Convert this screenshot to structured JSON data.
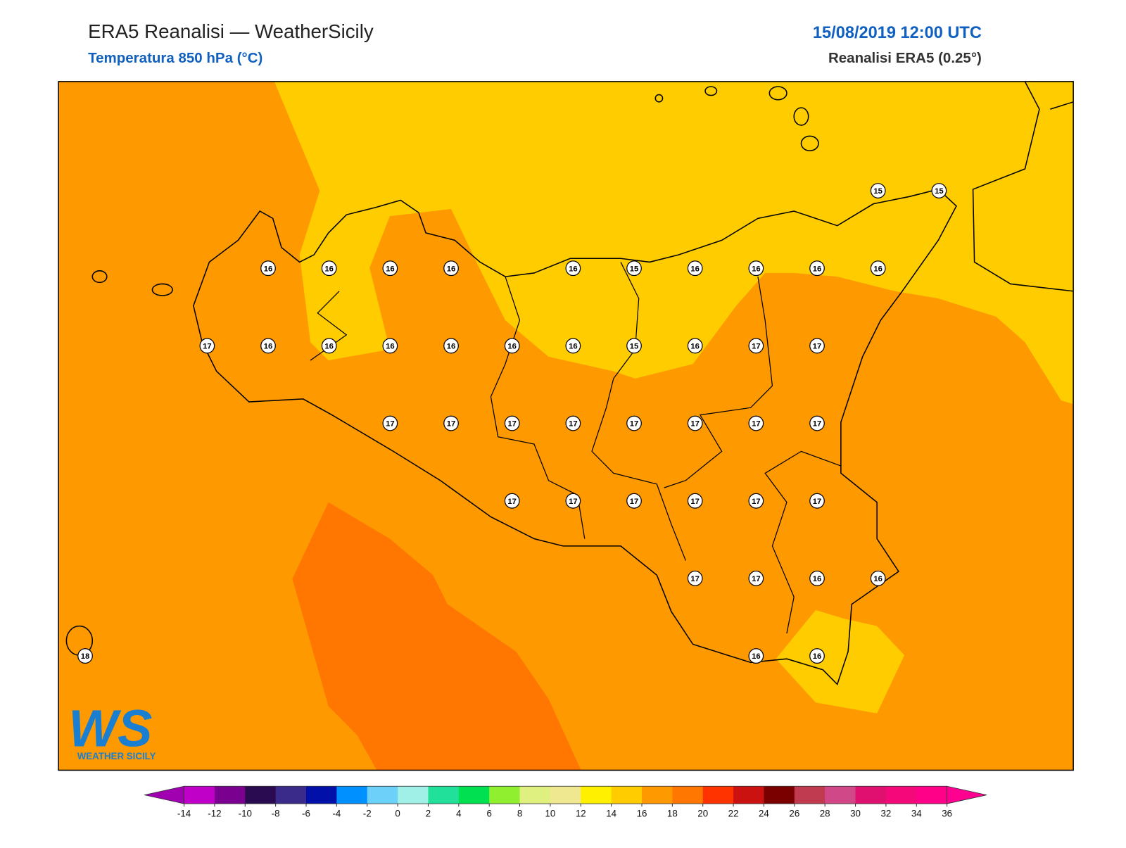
{
  "header": {
    "title": "ERA5 Reanalisi — WeatherSicily",
    "subtitle": "Temperatura 850 hPa (°C)",
    "datetime": "15/08/2019 12:00 UTC",
    "source": "Reanalisi ERA5 (0.25°)"
  },
  "logo": {
    "mark": "WS",
    "text": "WEATHER SICILY"
  },
  "map": {
    "station_values": [
      [
        null,
        null,
        null,
        null,
        null,
        null,
        null,
        null,
        null,
        null,
        null,
        null,
        null,
        15,
        15
      ],
      [
        null,
        null,
        null,
        16,
        16,
        16,
        16,
        null,
        16,
        15,
        16,
        16,
        16,
        16,
        null
      ],
      [
        null,
        null,
        17,
        16,
        16,
        16,
        16,
        16,
        16,
        15,
        16,
        17,
        17,
        null,
        null
      ],
      [
        null,
        null,
        null,
        null,
        null,
        17,
        17,
        17,
        17,
        17,
        17,
        17,
        17,
        null,
        null
      ],
      [
        null,
        null,
        null,
        null,
        null,
        null,
        null,
        17,
        17,
        17,
        17,
        17,
        17,
        null,
        null
      ],
      [
        null,
        null,
        null,
        null,
        null,
        null,
        null,
        null,
        null,
        null,
        17,
        17,
        16,
        16,
        null
      ],
      [
        18,
        null,
        null,
        null,
        null,
        null,
        null,
        null,
        null,
        null,
        null,
        16,
        16,
        null,
        null
      ]
    ]
  },
  "colorbar": {
    "ticks": [
      -14,
      -12,
      -10,
      -8,
      -6,
      -4,
      -2,
      0,
      2,
      4,
      6,
      8,
      10,
      12,
      14,
      16,
      18,
      20,
      22,
      24,
      26,
      28,
      30,
      32,
      34,
      36
    ],
    "colors": [
      "#c000c8",
      "#7a0090",
      "#2a0a50",
      "#3a2a8a",
      "#0010a8",
      "#0090ff",
      "#6cd0f8",
      "#a0f0e8",
      "#20e09a",
      "#00e050",
      "#90f030",
      "#e0f080",
      "#f0e890",
      "#fff000",
      "#ffcc00",
      "#ff9900",
      "#ff7700",
      "#ff3300",
      "#cc1111",
      "#7a0000",
      "#c03a50",
      "#d04888",
      "#e01070",
      "#f5087a",
      "#ff0088"
    ],
    "under_color": "#a000b0",
    "over_color": "#ff0090"
  }
}
